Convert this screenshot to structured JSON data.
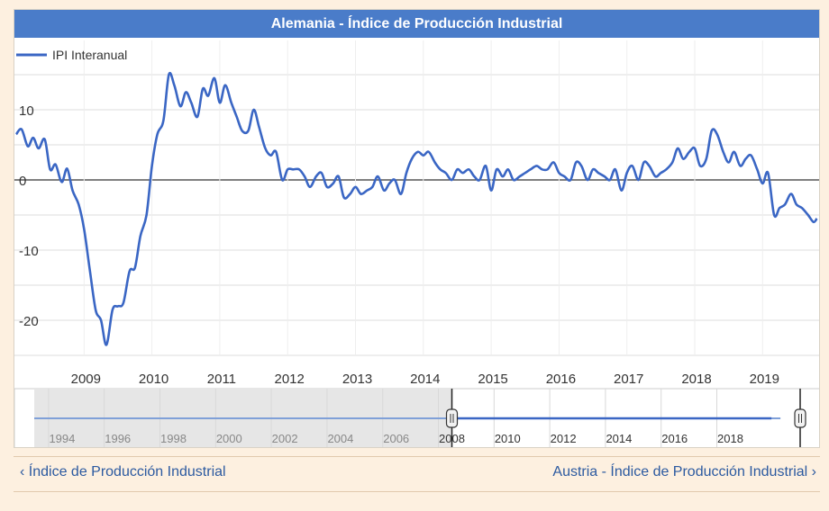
{
  "header": {
    "title": "Alemania - Índice de Producción Industrial"
  },
  "colors": {
    "title_bar": "#4a7cc9",
    "series": "#3a66c4",
    "background": "#fdf0e0",
    "link": "#2c5aa0"
  },
  "chart_data": {
    "type": "line",
    "title": "Alemania - Índice de Producción Industrial",
    "legend": {
      "position": "top-left",
      "entries": [
        "IPI Interanual"
      ]
    },
    "xlabel": "",
    "ylabel": "",
    "ylim": [
      -25,
      15
    ],
    "xlim": [
      2008.0,
      2019.8
    ],
    "y_ticks": [
      10,
      0,
      -10,
      -20
    ],
    "x_ticks": [
      "2009",
      "2010",
      "2011",
      "2012",
      "2013",
      "2014",
      "2015",
      "2016",
      "2017",
      "2018",
      "2019"
    ],
    "grid": true,
    "series": [
      {
        "name": "IPI Interanual",
        "color": "#3a66c4",
        "x": [
          2008.0,
          2008.08,
          2008.17,
          2008.25,
          2008.33,
          2008.42,
          2008.5,
          2008.58,
          2008.67,
          2008.75,
          2008.83,
          2008.92,
          2009.0,
          2009.08,
          2009.17,
          2009.25,
          2009.33,
          2009.42,
          2009.5,
          2009.58,
          2009.67,
          2009.75,
          2009.83,
          2009.92,
          2010.0,
          2010.08,
          2010.17,
          2010.25,
          2010.33,
          2010.42,
          2010.5,
          2010.58,
          2010.67,
          2010.75,
          2010.83,
          2010.92,
          2011.0,
          2011.08,
          2011.17,
          2011.25,
          2011.33,
          2011.42,
          2011.5,
          2011.58,
          2011.67,
          2011.75,
          2011.83,
          2011.92,
          2012.0,
          2012.08,
          2012.17,
          2012.25,
          2012.33,
          2012.42,
          2012.5,
          2012.58,
          2012.67,
          2012.75,
          2012.83,
          2012.92,
          2013.0,
          2013.08,
          2013.17,
          2013.25,
          2013.33,
          2013.42,
          2013.5,
          2013.58,
          2013.67,
          2013.75,
          2013.83,
          2013.92,
          2014.0,
          2014.08,
          2014.17,
          2014.25,
          2014.33,
          2014.42,
          2014.5,
          2014.58,
          2014.67,
          2014.75,
          2014.83,
          2014.92,
          2015.0,
          2015.08,
          2015.17,
          2015.25,
          2015.33,
          2015.42,
          2015.5,
          2015.58,
          2015.67,
          2015.75,
          2015.83,
          2015.92,
          2016.0,
          2016.08,
          2016.17,
          2016.25,
          2016.33,
          2016.42,
          2016.5,
          2016.58,
          2016.67,
          2016.75,
          2016.83,
          2016.92,
          2017.0,
          2017.08,
          2017.17,
          2017.25,
          2017.33,
          2017.42,
          2017.5,
          2017.58,
          2017.67,
          2017.75,
          2017.83,
          2017.92,
          2018.0,
          2018.08,
          2018.17,
          2018.25,
          2018.33,
          2018.42,
          2018.5,
          2018.58,
          2018.67,
          2018.75,
          2018.83,
          2018.92,
          2019.0,
          2019.08,
          2019.17,
          2019.25,
          2019.33,
          2019.42,
          2019.5,
          2019.58,
          2019.67,
          2019.75,
          2019.8
        ],
        "values": [
          6.5,
          7.2,
          4.8,
          6.0,
          4.5,
          5.8,
          1.5,
          2.2,
          -0.3,
          1.6,
          -1.5,
          -3.5,
          -7.0,
          -12.5,
          -18.5,
          -20.0,
          -23.5,
          -18.5,
          -18.0,
          -17.5,
          -13.0,
          -12.5,
          -8.0,
          -5.0,
          2.0,
          6.5,
          8.5,
          15.0,
          13.5,
          10.5,
          12.5,
          11.0,
          9.0,
          13.0,
          12.0,
          14.5,
          11.0,
          13.5,
          11.0,
          9.0,
          7.0,
          7.0,
          10.0,
          7.5,
          4.5,
          3.5,
          4.0,
          0.0,
          1.5,
          1.5,
          1.5,
          0.5,
          -1.0,
          0.5,
          1.0,
          -1.0,
          -0.5,
          0.5,
          -2.5,
          -2.0,
          -1.0,
          -2.0,
          -1.5,
          -1.0,
          0.5,
          -1.5,
          -0.5,
          0.0,
          -2.0,
          1.0,
          3.0,
          4.0,
          3.5,
          4.0,
          2.5,
          1.5,
          1.0,
          0.0,
          1.5,
          1.0,
          1.5,
          0.5,
          0.0,
          2.0,
          -1.5,
          1.5,
          0.5,
          1.5,
          0.0,
          0.5,
          1.0,
          1.5,
          2.0,
          1.5,
          1.5,
          2.5,
          1.0,
          0.5,
          0.0,
          2.5,
          2.0,
          0.0,
          1.5,
          1.0,
          0.5,
          0.0,
          1.5,
          -1.5,
          1.0,
          2.0,
          0.0,
          2.5,
          2.0,
          0.5,
          1.0,
          1.5,
          2.5,
          4.5,
          3.0,
          4.0,
          4.5,
          2.0,
          3.0,
          7.0,
          6.5,
          4.0,
          2.5,
          4.0,
          2.0,
          3.0,
          3.5,
          1.5,
          -0.5,
          1.0,
          -5.0,
          -4.0,
          -3.5,
          -2.0,
          -3.5,
          -4.0,
          -5.0,
          -6.0,
          -5.5
        ]
      }
    ],
    "navigator": {
      "labels": [
        "1994",
        "1996",
        "1998",
        "2000",
        "2002",
        "2004",
        "2006",
        "2008",
        "2010",
        "2012",
        "2014",
        "2016",
        "2018"
      ],
      "range": [
        1993.0,
        2019.8
      ],
      "selected": [
        2008.0,
        2019.8
      ]
    }
  },
  "footer": {
    "prev_link": "‹ Índice de Producción Industrial",
    "next_link": "Austria - Índice de Producción Industrial ›"
  }
}
